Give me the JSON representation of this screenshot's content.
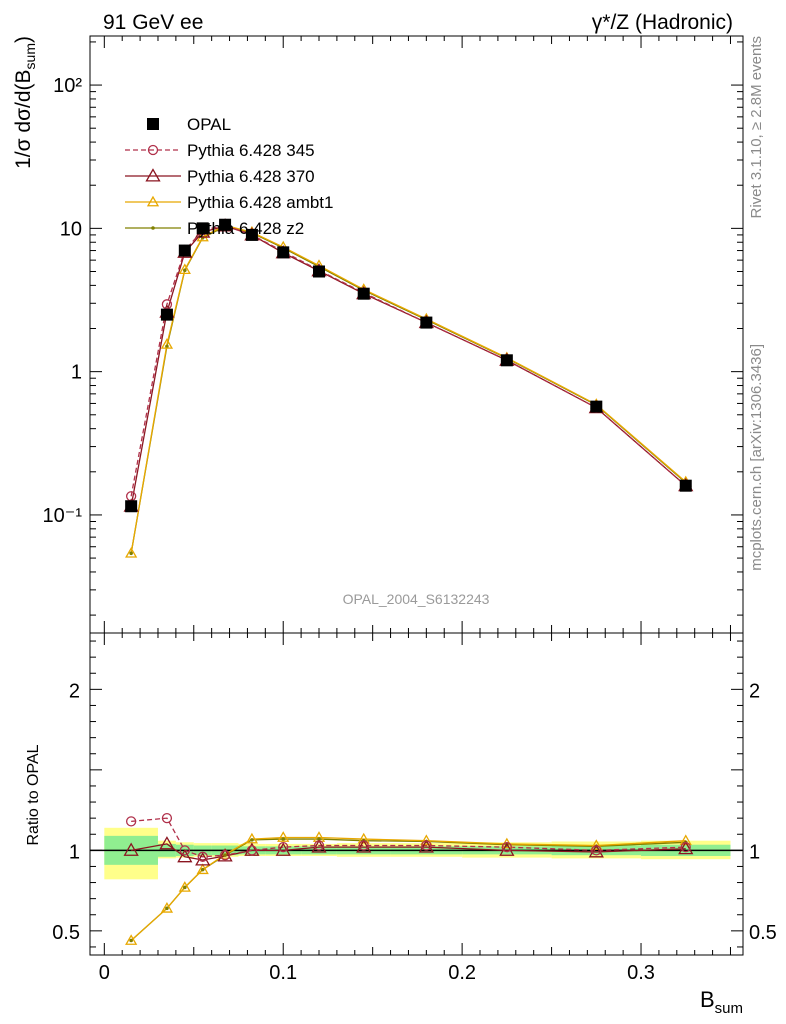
{
  "header": {
    "left_title": "91 GeV ee",
    "right_title": "γ*/Z (Hadronic)"
  },
  "side_labels": {
    "rivet": "Rivet 3.1.10, ≥ 2.8M events",
    "mcplots": "mcplots.cern.ch [arXiv:1306.3436]"
  },
  "watermark": "OPAL_2004_S6132243",
  "chart_data": [
    {
      "type": "line",
      "panel": "main",
      "title": "91 GeV ee",
      "ylabel": "1/σ dσ/d(B_sum)",
      "yscale": "log",
      "ylim": [
        0.015,
        220
      ],
      "xlim": [
        -0.008,
        0.357
      ],
      "y_ticks": [
        {
          "value": 0.1,
          "label": "10⁻¹"
        },
        {
          "value": 1,
          "label": "1"
        },
        {
          "value": 10,
          "label": "10"
        },
        {
          "value": 100,
          "label": "10²"
        }
      ],
      "legend_position": "top-left",
      "x": [
        0.015,
        0.035,
        0.045,
        0.055,
        0.0675,
        0.0825,
        0.1,
        0.12,
        0.145,
        0.18,
        0.225,
        0.275,
        0.325
      ],
      "series": [
        {
          "name": "OPAL",
          "marker": "filled-square",
          "color": "#000000",
          "values": [
            0.115,
            2.5,
            7.0,
            10.0,
            10.6,
            9.0,
            6.8,
            5.0,
            3.5,
            2.2,
            1.2,
            0.57,
            0.16
          ]
        },
        {
          "name": "Pythia 6.428 345",
          "marker": "open-circle",
          "line": "dashed",
          "color": "#b0304a",
          "values": [
            0.135,
            2.95,
            7.0,
            9.7,
            10.5,
            9.0,
            6.9,
            5.1,
            3.55,
            2.2,
            1.2,
            0.56,
            0.16
          ]
        },
        {
          "name": "Pythia 6.428 370",
          "marker": "open-triangle",
          "line": "solid",
          "color": "#8b1520",
          "values": [
            0.115,
            2.6,
            6.8,
            9.4,
            10.4,
            9.0,
            6.75,
            5.05,
            3.5,
            2.2,
            1.2,
            0.56,
            0.16
          ]
        },
        {
          "name": "Pythia 6.428 ambt1",
          "marker": "open-triangle",
          "line": "solid",
          "color": "#e8a800",
          "values": [
            0.054,
            1.55,
            5.15,
            8.7,
            10.5,
            9.4,
            7.4,
            5.5,
            3.75,
            2.33,
            1.25,
            0.59,
            0.17
          ]
        },
        {
          "name": "Pythia 6.428 z2",
          "marker": "dot",
          "line": "solid",
          "color": "#808000",
          "values": [
            0.054,
            1.5,
            5.1,
            8.6,
            10.3,
            9.3,
            7.3,
            5.4,
            3.7,
            2.3,
            1.24,
            0.585,
            0.168
          ]
        }
      ]
    },
    {
      "type": "line",
      "panel": "ratio",
      "ylabel": "Ratio to OPAL",
      "xlabel": "B_sum",
      "ylim": [
        0.35,
        2.35
      ],
      "xlim": [
        -0.008,
        0.357
      ],
      "y_ticks": [
        {
          "value": 0.5,
          "label": "0.5"
        },
        {
          "value": 1,
          "label": "1"
        },
        {
          "value": 2,
          "label": "2"
        }
      ],
      "x_ticks": [
        {
          "value": 0,
          "label": "0"
        },
        {
          "value": 0.1,
          "label": "0.1"
        },
        {
          "value": 0.2,
          "label": "0.2"
        },
        {
          "value": 0.3,
          "label": "0.3"
        }
      ],
      "reference_line": 1,
      "uncertainty_bands": {
        "bin_edges": [
          0,
          0.03,
          0.04,
          0.05,
          0.06,
          0.075,
          0.09,
          0.11,
          0.13,
          0.16,
          0.2,
          0.25,
          0.3,
          0.35
        ],
        "stat_low": [
          0.91,
          0.96,
          0.965,
          0.97,
          0.97,
          0.975,
          0.975,
          0.975,
          0.975,
          0.975,
          0.975,
          0.97,
          0.965
        ],
        "stat_high": [
          1.09,
          1.04,
          1.035,
          1.03,
          1.03,
          1.025,
          1.025,
          1.025,
          1.025,
          1.025,
          1.025,
          1.03,
          1.035
        ],
        "total_low": [
          0.82,
          0.95,
          0.955,
          0.96,
          0.96,
          0.965,
          0.965,
          0.965,
          0.96,
          0.96,
          0.955,
          0.95,
          0.945
        ],
        "total_high": [
          1.14,
          1.06,
          1.05,
          1.045,
          1.045,
          1.04,
          1.04,
          1.04,
          1.045,
          1.045,
          1.05,
          1.055,
          1.06
        ]
      },
      "x": [
        0.015,
        0.035,
        0.045,
        0.055,
        0.0675,
        0.0825,
        0.1,
        0.12,
        0.145,
        0.18,
        0.225,
        0.275,
        0.325
      ],
      "series": [
        {
          "name": "Pythia 6.428 345",
          "marker": "open-circle",
          "line": "dashed",
          "color": "#b0304a",
          "values": [
            1.18,
            1.2,
            1.0,
            0.96,
            0.97,
            1.0,
            1.02,
            1.03,
            1.03,
            1.03,
            1.02,
            1.0,
            1.02
          ]
        },
        {
          "name": "Pythia 6.428 370",
          "marker": "open-triangle",
          "line": "solid",
          "color": "#8b1520",
          "values": [
            1.0,
            1.04,
            0.96,
            0.94,
            0.965,
            1.0,
            1.0,
            1.02,
            1.02,
            1.02,
            1.0,
            0.99,
            1.01
          ]
        },
        {
          "name": "Pythia 6.428 ambt1",
          "marker": "open-triangle",
          "line": "solid",
          "color": "#e8a800",
          "values": [
            0.44,
            0.64,
            0.77,
            0.88,
            0.975,
            1.07,
            1.08,
            1.08,
            1.07,
            1.06,
            1.04,
            1.03,
            1.06
          ]
        },
        {
          "name": "Pythia 6.428 z2",
          "marker": "dot",
          "line": "solid",
          "color": "#808000",
          "values": [
            0.44,
            0.64,
            0.77,
            0.88,
            0.97,
            1.065,
            1.07,
            1.07,
            1.06,
            1.055,
            1.035,
            1.025,
            1.05
          ]
        }
      ]
    }
  ]
}
